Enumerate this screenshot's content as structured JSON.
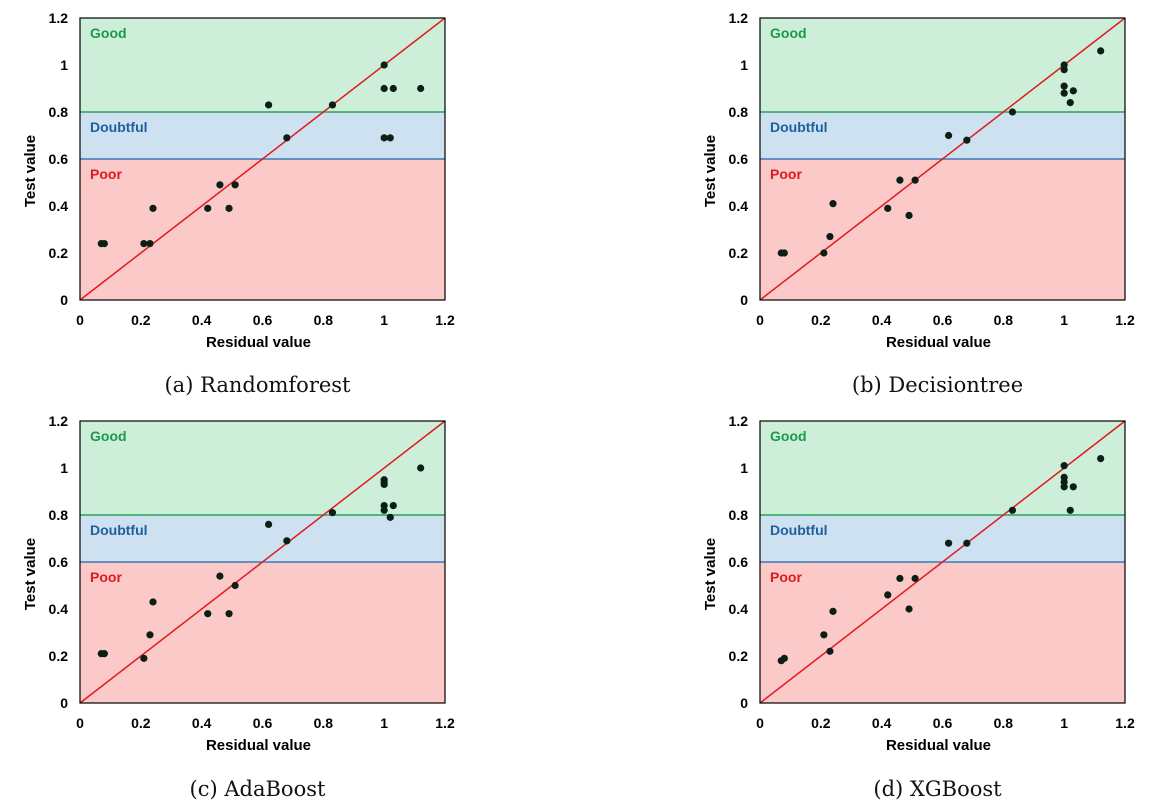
{
  "chart_data": [
    {
      "type": "scatter",
      "caption": "(a) Randomforest",
      "xlabel": "Residual value",
      "ylabel": "Test value",
      "xlim": [
        0,
        1.2
      ],
      "ylim": [
        0,
        1.2
      ],
      "ticks": [
        "0",
        "0.2",
        "0.4",
        "0.6",
        "0.8",
        "1",
        "1.2"
      ],
      "zones": [
        {
          "label": "Good",
          "from": 0.8,
          "to": 1.2,
          "fill": "#cdeed8",
          "text": "#1a9a4a",
          "line": "#2aa35a"
        },
        {
          "label": "Doubtful",
          "from": 0.6,
          "to": 0.8,
          "fill": "#cde1f1",
          "text": "#1f5fa0",
          "line": "#3f78b5"
        },
        {
          "label": "Poor",
          "from": 0.0,
          "to": 0.6,
          "fill": "#fcc9c9",
          "text": "#e0191e",
          "line": ""
        }
      ],
      "diagonal": true,
      "points": [
        {
          "x": 0.07,
          "y": 0.24
        },
        {
          "x": 0.08,
          "y": 0.24
        },
        {
          "x": 0.21,
          "y": 0.24
        },
        {
          "x": 0.23,
          "y": 0.24
        },
        {
          "x": 0.24,
          "y": 0.39
        },
        {
          "x": 0.42,
          "y": 0.39
        },
        {
          "x": 0.46,
          "y": 0.49
        },
        {
          "x": 0.49,
          "y": 0.39
        },
        {
          "x": 0.51,
          "y": 0.49
        },
        {
          "x": 0.62,
          "y": 0.83
        },
        {
          "x": 0.68,
          "y": 0.69
        },
        {
          "x": 0.83,
          "y": 0.83
        },
        {
          "x": 1.0,
          "y": 1.0
        },
        {
          "x": 1.0,
          "y": 0.9
        },
        {
          "x": 1.03,
          "y": 0.9
        },
        {
          "x": 1.12,
          "y": 0.9
        },
        {
          "x": 1.0,
          "y": 0.69
        },
        {
          "x": 1.02,
          "y": 0.69
        }
      ]
    },
    {
      "type": "scatter",
      "caption": "(b) Decisiontree",
      "xlabel": "Residual value",
      "ylabel": "Test value",
      "xlim": [
        0,
        1.2
      ],
      "ylim": [
        0,
        1.2
      ],
      "ticks": [
        "0",
        "0.2",
        "0.4",
        "0.6",
        "0.8",
        "1",
        "1.2"
      ],
      "zones": [
        {
          "label": "Good",
          "from": 0.8,
          "to": 1.2,
          "fill": "#cdeed8",
          "text": "#1a9a4a",
          "line": "#2aa35a"
        },
        {
          "label": "Doubtful",
          "from": 0.6,
          "to": 0.8,
          "fill": "#cde1f1",
          "text": "#1f5fa0",
          "line": "#3f78b5"
        },
        {
          "label": "Poor",
          "from": 0.0,
          "to": 0.6,
          "fill": "#fcc9c9",
          "text": "#e0191e",
          "line": ""
        }
      ],
      "diagonal": true,
      "points": [
        {
          "x": 0.07,
          "y": 0.2
        },
        {
          "x": 0.08,
          "y": 0.2
        },
        {
          "x": 0.21,
          "y": 0.2
        },
        {
          "x": 0.23,
          "y": 0.27
        },
        {
          "x": 0.24,
          "y": 0.41
        },
        {
          "x": 0.42,
          "y": 0.39
        },
        {
          "x": 0.46,
          "y": 0.51
        },
        {
          "x": 0.49,
          "y": 0.36
        },
        {
          "x": 0.51,
          "y": 0.51
        },
        {
          "x": 0.62,
          "y": 0.7
        },
        {
          "x": 0.68,
          "y": 0.68
        },
        {
          "x": 0.83,
          "y": 0.8
        },
        {
          "x": 1.0,
          "y": 1.0
        },
        {
          "x": 1.0,
          "y": 0.98
        },
        {
          "x": 1.0,
          "y": 0.91
        },
        {
          "x": 1.0,
          "y": 0.88
        },
        {
          "x": 1.02,
          "y": 0.84
        },
        {
          "x": 1.03,
          "y": 0.89
        },
        {
          "x": 1.12,
          "y": 1.06
        }
      ]
    },
    {
      "type": "scatter",
      "caption": "(c) AdaBoost",
      "xlabel": "Residual value",
      "ylabel": "Test value",
      "xlim": [
        0,
        1.2
      ],
      "ylim": [
        0,
        1.2
      ],
      "ticks": [
        "0",
        "0.2",
        "0.4",
        "0.6",
        "0.8",
        "1",
        "1.2"
      ],
      "zones": [
        {
          "label": "Good",
          "from": 0.8,
          "to": 1.2,
          "fill": "#cdeed8",
          "text": "#1a9a4a",
          "line": "#2aa35a"
        },
        {
          "label": "Doubtful",
          "from": 0.6,
          "to": 0.8,
          "fill": "#cde1f1",
          "text": "#1f5fa0",
          "line": "#3f78b5"
        },
        {
          "label": "Poor",
          "from": 0.0,
          "to": 0.6,
          "fill": "#fcc9c9",
          "text": "#e0191e",
          "line": ""
        }
      ],
      "diagonal": true,
      "points": [
        {
          "x": 0.07,
          "y": 0.21
        },
        {
          "x": 0.08,
          "y": 0.21
        },
        {
          "x": 0.21,
          "y": 0.19
        },
        {
          "x": 0.23,
          "y": 0.29
        },
        {
          "x": 0.24,
          "y": 0.43
        },
        {
          "x": 0.42,
          "y": 0.38
        },
        {
          "x": 0.46,
          "y": 0.54
        },
        {
          "x": 0.49,
          "y": 0.38
        },
        {
          "x": 0.51,
          "y": 0.5
        },
        {
          "x": 0.62,
          "y": 0.76
        },
        {
          "x": 0.68,
          "y": 0.69
        },
        {
          "x": 0.83,
          "y": 0.81
        },
        {
          "x": 1.0,
          "y": 0.95
        },
        {
          "x": 1.0,
          "y": 0.94
        },
        {
          "x": 1.0,
          "y": 0.93
        },
        {
          "x": 1.0,
          "y": 0.84
        },
        {
          "x": 1.0,
          "y": 0.82
        },
        {
          "x": 1.02,
          "y": 0.79
        },
        {
          "x": 1.03,
          "y": 0.84
        },
        {
          "x": 1.12,
          "y": 1.0
        }
      ]
    },
    {
      "type": "scatter",
      "caption": "(d) XGBoost",
      "xlabel": "Residual value",
      "ylabel": "Test value",
      "xlim": [
        0,
        1.2
      ],
      "ylim": [
        0,
        1.2
      ],
      "ticks": [
        "0",
        "0.2",
        "0.4",
        "0.6",
        "0.8",
        "1",
        "1.2"
      ],
      "zones": [
        {
          "label": "Good",
          "from": 0.8,
          "to": 1.2,
          "fill": "#cdeed8",
          "text": "#1a9a4a",
          "line": "#2aa35a"
        },
        {
          "label": "Doubtful",
          "from": 0.6,
          "to": 0.8,
          "fill": "#cde1f1",
          "text": "#1f5fa0",
          "line": "#3f78b5"
        },
        {
          "label": "Poor",
          "from": 0.0,
          "to": 0.6,
          "fill": "#fcc9c9",
          "text": "#e0191e",
          "line": ""
        }
      ],
      "diagonal": true,
      "points": [
        {
          "x": 0.07,
          "y": 0.18
        },
        {
          "x": 0.08,
          "y": 0.19
        },
        {
          "x": 0.21,
          "y": 0.29
        },
        {
          "x": 0.23,
          "y": 0.22
        },
        {
          "x": 0.24,
          "y": 0.39
        },
        {
          "x": 0.42,
          "y": 0.46
        },
        {
          "x": 0.46,
          "y": 0.53
        },
        {
          "x": 0.49,
          "y": 0.4
        },
        {
          "x": 0.51,
          "y": 0.53
        },
        {
          "x": 0.62,
          "y": 0.68
        },
        {
          "x": 0.68,
          "y": 0.68
        },
        {
          "x": 0.83,
          "y": 0.82
        },
        {
          "x": 1.0,
          "y": 1.01
        },
        {
          "x": 1.0,
          "y": 0.96
        },
        {
          "x": 1.0,
          "y": 0.94
        },
        {
          "x": 1.0,
          "y": 0.92
        },
        {
          "x": 1.02,
          "y": 0.82
        },
        {
          "x": 1.03,
          "y": 0.92
        },
        {
          "x": 1.12,
          "y": 1.04
        }
      ]
    }
  ]
}
